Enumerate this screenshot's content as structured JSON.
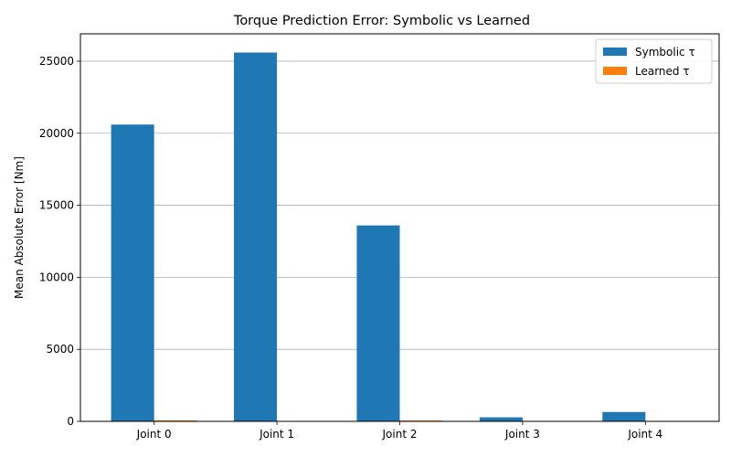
{
  "chart_data": {
    "type": "bar",
    "title": "Torque Prediction Error: Symbolic vs Learned",
    "xlabel": "",
    "ylabel": "Mean Absolute Error [Nm]",
    "categories": [
      "Joint 0",
      "Joint 1",
      "Joint 2",
      "Joint 3",
      "Joint 4"
    ],
    "series": [
      {
        "name": "Symbolic τ",
        "color": "#1f77b4",
        "values": [
          20600,
          25600,
          13600,
          280,
          650
        ]
      },
      {
        "name": "Learned τ",
        "color": "#ff7f0e",
        "values": [
          70,
          10,
          60,
          5,
          5
        ]
      }
    ],
    "ylim": [
      0,
      26900
    ],
    "yticks": [
      0,
      5000,
      10000,
      15000,
      20000,
      25000
    ],
    "grid": "y",
    "legend": "top-right"
  }
}
